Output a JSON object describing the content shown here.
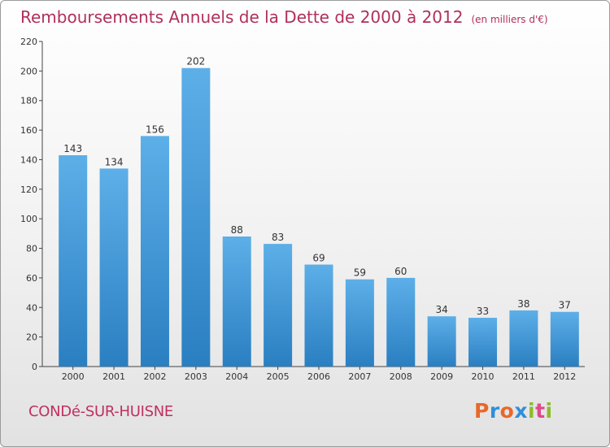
{
  "header": {
    "title": "Remboursements Annuels de la Dette de 2000 à 2012",
    "unit": "(en milliers d'€)"
  },
  "footer": {
    "commune": "CONDé-SUR-HUISNE",
    "logo": "Proxiti"
  },
  "colors": {
    "title": "#b0305a",
    "bar_light": "#5dafe8",
    "bar_dark": "#2a7fc1",
    "logo": [
      "#e8682a",
      "#2f8fd8",
      "#e8682a",
      "#2f8fd8",
      "#8dbb2a",
      "#e04a8a",
      "#8dbb2a"
    ]
  },
  "chart_data": {
    "type": "bar",
    "title": "Remboursements Annuels de la Dette de 2000 à 2012",
    "xlabel": "",
    "ylabel": "",
    "categories": [
      "2000",
      "2001",
      "2002",
      "2003",
      "2004",
      "2005",
      "2006",
      "2007",
      "2008",
      "2009",
      "2010",
      "2011",
      "2012"
    ],
    "values": [
      143,
      134,
      156,
      202,
      88,
      83,
      69,
      59,
      60,
      34,
      33,
      38,
      37
    ],
    "ylim": [
      0,
      220
    ],
    "yticks": [
      0,
      20,
      40,
      60,
      80,
      100,
      120,
      140,
      160,
      180,
      200,
      220
    ],
    "grid": false,
    "legend": "none"
  }
}
